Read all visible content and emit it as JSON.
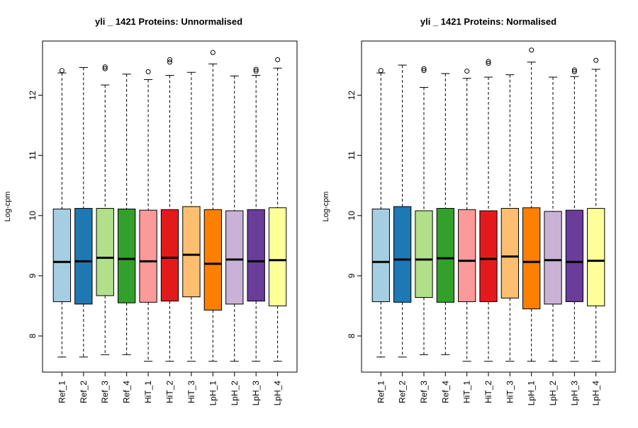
{
  "chart_data": [
    {
      "type": "boxplot",
      "title": "yli _ 1421  Proteins: Unnormalised",
      "ylabel": "Log-cpm",
      "ylim": [
        7.4,
        12.9
      ],
      "yticks": [
        8,
        9,
        10,
        11,
        12
      ],
      "categories": [
        "Ref_1",
        "Ref_2",
        "Ref_3",
        "Ref_4",
        "HiT_1",
        "HiT_2",
        "HiT_3",
        "LpH_1",
        "LpH_2",
        "LpH_3",
        "LpH_4"
      ],
      "colors": [
        "#a6cee3",
        "#1f78b4",
        "#b2df8a",
        "#33a02c",
        "#fb9a99",
        "#e31a1c",
        "#fdbf6f",
        "#ff7f00",
        "#cab2d6",
        "#6a3d9a",
        "#ffff99"
      ],
      "boxes": [
        {
          "lower": 7.65,
          "q1": 8.57,
          "median": 9.23,
          "q3": 10.11,
          "upper": 12.37,
          "outliers": [
            12.41
          ]
        },
        {
          "lower": 7.65,
          "q1": 8.53,
          "median": 9.24,
          "q3": 10.12,
          "upper": 12.46,
          "outliers": []
        },
        {
          "lower": 7.69,
          "q1": 8.67,
          "median": 9.3,
          "q3": 10.12,
          "upper": 12.17,
          "outliers": [
            12.44,
            12.47
          ]
        },
        {
          "lower": 7.69,
          "q1": 8.55,
          "median": 9.28,
          "q3": 10.11,
          "upper": 12.35,
          "outliers": []
        },
        {
          "lower": 7.58,
          "q1": 8.56,
          "median": 9.24,
          "q3": 10.09,
          "upper": 12.26,
          "outliers": [
            12.39
          ]
        },
        {
          "lower": 7.58,
          "q1": 8.58,
          "median": 9.3,
          "q3": 10.1,
          "upper": 12.33,
          "outliers": [
            12.55,
            12.59
          ]
        },
        {
          "lower": 7.58,
          "q1": 8.65,
          "median": 9.35,
          "q3": 10.15,
          "upper": 12.38,
          "outliers": []
        },
        {
          "lower": 7.58,
          "q1": 8.43,
          "median": 9.2,
          "q3": 10.1,
          "upper": 12.52,
          "outliers": [
            12.71
          ]
        },
        {
          "lower": 7.58,
          "q1": 8.53,
          "median": 9.27,
          "q3": 10.08,
          "upper": 12.32,
          "outliers": []
        },
        {
          "lower": 7.58,
          "q1": 8.58,
          "median": 9.24,
          "q3": 10.1,
          "upper": 12.33,
          "outliers": [
            12.4,
            12.43
          ]
        },
        {
          "lower": 7.58,
          "q1": 8.5,
          "median": 9.26,
          "q3": 10.13,
          "upper": 12.45,
          "outliers": [
            12.59
          ]
        }
      ]
    },
    {
      "type": "boxplot",
      "title": "yli _ 1421  Proteins: Normalised",
      "ylabel": "Log-cpm",
      "ylim": [
        7.4,
        12.9
      ],
      "yticks": [
        8,
        9,
        10,
        11,
        12
      ],
      "categories": [
        "Ref_1",
        "Ref_2",
        "Ref_3",
        "Ref_4",
        "HiT_1",
        "HiT_2",
        "HiT_3",
        "LpH_1",
        "LpH_2",
        "LpH_3",
        "LpH_4"
      ],
      "colors": [
        "#a6cee3",
        "#1f78b4",
        "#b2df8a",
        "#33a02c",
        "#fb9a99",
        "#e31a1c",
        "#fdbf6f",
        "#ff7f00",
        "#cab2d6",
        "#6a3d9a",
        "#ffff99"
      ],
      "boxes": [
        {
          "lower": 7.65,
          "q1": 8.57,
          "median": 9.23,
          "q3": 10.11,
          "upper": 12.37,
          "outliers": [
            12.41
          ]
        },
        {
          "lower": 7.65,
          "q1": 8.56,
          "median": 9.27,
          "q3": 10.15,
          "upper": 12.5,
          "outliers": []
        },
        {
          "lower": 7.69,
          "q1": 8.64,
          "median": 9.27,
          "q3": 10.08,
          "upper": 12.13,
          "outliers": [
            12.41,
            12.44
          ]
        },
        {
          "lower": 7.69,
          "q1": 8.56,
          "median": 9.29,
          "q3": 10.12,
          "upper": 12.36,
          "outliers": []
        },
        {
          "lower": 7.58,
          "q1": 8.57,
          "median": 9.25,
          "q3": 10.1,
          "upper": 12.28,
          "outliers": [
            12.4
          ]
        },
        {
          "lower": 7.58,
          "q1": 8.57,
          "median": 9.28,
          "q3": 10.08,
          "upper": 12.3,
          "outliers": [
            12.53,
            12.56
          ]
        },
        {
          "lower": 7.58,
          "q1": 8.63,
          "median": 9.32,
          "q3": 10.12,
          "upper": 12.34,
          "outliers": []
        },
        {
          "lower": 7.58,
          "q1": 8.45,
          "median": 9.23,
          "q3": 10.13,
          "upper": 12.55,
          "outliers": [
            12.75
          ]
        },
        {
          "lower": 7.58,
          "q1": 8.53,
          "median": 9.26,
          "q3": 10.07,
          "upper": 12.3,
          "outliers": []
        },
        {
          "lower": 7.58,
          "q1": 8.57,
          "median": 9.23,
          "q3": 10.09,
          "upper": 12.31,
          "outliers": [
            12.39,
            12.42
          ]
        },
        {
          "lower": 7.58,
          "q1": 8.5,
          "median": 9.25,
          "q3": 10.12,
          "upper": 12.43,
          "outliers": [
            12.58
          ]
        }
      ]
    }
  ]
}
